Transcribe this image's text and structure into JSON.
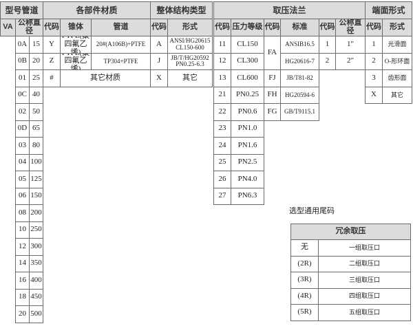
{
  "headers": {
    "model_pipe": "型号管道",
    "materials": "各部件材质",
    "structure": "整体结构类型",
    "flange": "取压法兰",
    "face": "端面形式"
  },
  "subheaders": {
    "va": "VA",
    "nominal_diameter": "公称直径",
    "mat_code": "代码",
    "cone": "锥体",
    "pipe": "管道",
    "struct_code": "代码",
    "struct_form": "形式",
    "pressure_code": "代码",
    "pressure_class": "压力等级",
    "std_code": "代码",
    "standard": "标准",
    "dia_code": "代码",
    "dia": "公称直径",
    "face_code": "代码",
    "face_form": "形式"
  },
  "sizes": [
    [
      "0A",
      "15"
    ],
    [
      "0B",
      "20"
    ],
    [
      "01",
      "25"
    ],
    [
      "0C",
      "40"
    ],
    [
      "02",
      "50"
    ],
    [
      "0D",
      "65"
    ],
    [
      "03",
      "80"
    ],
    [
      "04",
      "100"
    ],
    [
      "05",
      "125"
    ],
    [
      "06",
      "150"
    ],
    [
      "08",
      "200"
    ],
    [
      "10",
      "250"
    ],
    [
      "12",
      "300"
    ],
    [
      "14",
      "350"
    ],
    [
      "16",
      "400"
    ],
    [
      "18",
      "450"
    ],
    [
      "20",
      "500"
    ]
  ],
  "materials": [
    {
      "code": "Y",
      "cone": "PTFE(聚\n四氟乙烯)",
      "pipe": "20#(A106B)+PTFE"
    },
    {
      "code": "Z",
      "cone": "PTFE(聚\n四氟乙烯)",
      "pipe": "TP304+PTFE"
    },
    {
      "code": "#",
      "other": "其它材质"
    }
  ],
  "structure": [
    {
      "code": "A",
      "form": "ANSI/HG20615\nCL150-600"
    },
    {
      "code": "J",
      "form": "JB/T/HG20592\nPN0.25-6.3"
    },
    {
      "code": "X",
      "form": "其它"
    }
  ],
  "pressure": [
    [
      "11",
      "CL150"
    ],
    [
      "12",
      "CL300"
    ],
    [
      "13",
      "CL600"
    ],
    [
      "21",
      "PN0.25"
    ],
    [
      "22",
      "PN0.6"
    ],
    [
      "23",
      "PN1.0"
    ],
    [
      "24",
      "PN1.6"
    ],
    [
      "25",
      "PN2.5"
    ],
    [
      "26",
      "PN4.0"
    ],
    [
      "27",
      "PN6.3"
    ]
  ],
  "std_codes": [
    "FA",
    "FJ",
    "FH",
    "FG"
  ],
  "standards": [
    "ANSIB16.5",
    "HG20616-7",
    "JB/T81-82",
    "HG20594-6",
    "GB/T9115.1"
  ],
  "diameters": [
    [
      "1",
      "1\""
    ],
    [
      "2",
      "2\""
    ]
  ],
  "faces": [
    [
      "1",
      "光滑面"
    ],
    [
      "2",
      "O-形环面"
    ],
    [
      "3",
      "齿形面"
    ],
    [
      "X",
      "其它"
    ]
  ],
  "tail": {
    "title": "选型通用尾码",
    "header": "冗余取压",
    "rows": [
      [
        "无",
        "一组取压口"
      ],
      [
        "(2R)",
        "二组取压口"
      ],
      [
        "(3R)",
        "三组取压口"
      ],
      [
        "(4R)",
        "四组取压口"
      ],
      [
        "(5R)",
        "五组取压口"
      ]
    ]
  },
  "colors": {
    "header_bg": "#dcdcdc",
    "border": "#6a6a6a"
  }
}
